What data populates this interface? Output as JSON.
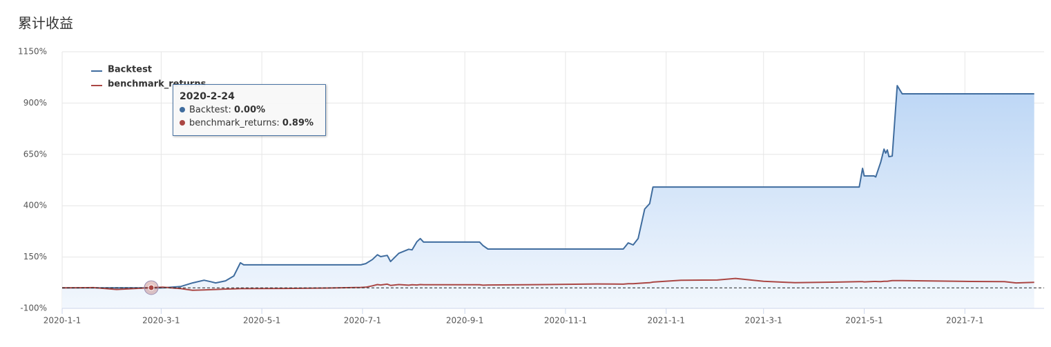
{
  "chart_data": {
    "type": "area-line",
    "title": "累计收益",
    "x": [
      "2020-1-1",
      "2020-1-20",
      "2020-2-3",
      "2020-2-24",
      "2020-3-2",
      "2020-3-13",
      "2020-3-20",
      "2020-3-27",
      "2020-3-31",
      "2020-4-3",
      "2020-4-9",
      "2020-4-14",
      "2020-4-18",
      "2020-4-20",
      "2020-5-15",
      "2020-6-10",
      "2020-6-30",
      "2020-7-3",
      "2020-7-7",
      "2020-7-10",
      "2020-7-12",
      "2020-7-16",
      "2020-7-18",
      "2020-7-23",
      "2020-7-29",
      "2020-7-31",
      "2020-8-3",
      "2020-8-5",
      "2020-8-7",
      "2020-9-10",
      "2020-9-12",
      "2020-9-15",
      "2020-10-20",
      "2020-11-20",
      "2020-12-6",
      "2020-12-9",
      "2020-12-12",
      "2020-12-15",
      "2020-12-19",
      "2020-12-22",
      "2020-12-24",
      "2021-1-10",
      "2021-2-1",
      "2021-2-12",
      "2021-3-1",
      "2021-3-20",
      "2021-4-15",
      "2021-4-28",
      "2021-4-30",
      "2021-5-1",
      "2021-5-7",
      "2021-5-8",
      "2021-5-11",
      "2021-5-13",
      "2021-5-14",
      "2021-5-15",
      "2021-5-16",
      "2021-5-18",
      "2021-5-21",
      "2021-5-24",
      "2021-6-15",
      "2021-7-5",
      "2021-7-25",
      "2021-8-1",
      "2021-8-12"
    ],
    "series": [
      {
        "name": "Backtest",
        "color": "#3f6c9e",
        "fill": true,
        "values": [
          0,
          0,
          0,
          0,
          0,
          7,
          24,
          37,
          30,
          24,
          34,
          58,
          122,
          112,
          112,
          112,
          112,
          118,
          138,
          161,
          152,
          158,
          128,
          168,
          188,
          185,
          225,
          240,
          223,
          223,
          206,
          189,
          189,
          189,
          189,
          219,
          209,
          240,
          384,
          410,
          491,
          491,
          491,
          491,
          491,
          491,
          491,
          491,
          582,
          545,
          545,
          540,
          612,
          676,
          656,
          672,
          639,
          642,
          985,
          945,
          945,
          945,
          945,
          945,
          945
        ]
      },
      {
        "name": "benchmark_returns",
        "color": "#aa4643",
        "fill": false,
        "values": [
          0,
          1,
          -8,
          0.89,
          3,
          -4,
          -12,
          -10,
          -9,
          -8,
          -6,
          -5,
          -4,
          -4,
          -3,
          -1,
          2,
          3,
          10,
          16,
          14,
          18,
          12,
          16,
          13,
          15,
          14,
          16,
          15,
          15,
          13,
          14,
          16,
          19,
          18,
          20,
          20,
          22,
          24,
          25,
          28,
          37,
          38,
          46,
          32,
          25,
          28,
          30,
          30,
          29,
          31,
          31,
          30,
          32,
          32,
          32,
          33,
          35,
          35,
          35,
          33,
          31,
          30,
          24,
          27
        ]
      }
    ],
    "xlim": [
      "2020-1-1",
      "2021-8-18"
    ],
    "xticks": [
      "2020-1-1",
      "2020-3-1",
      "2020-5-1",
      "2020-7-1",
      "2020-9-1",
      "2020-11-1",
      "2021-1-1",
      "2021-3-1",
      "2021-5-1",
      "2021-7-1"
    ],
    "ylim": [
      -100,
      1150
    ],
    "yticks": [
      {
        "value": -100,
        "label": "-100%"
      },
      {
        "value": 150,
        "label": "150%"
      },
      {
        "value": 400,
        "label": "400%"
      },
      {
        "value": 650,
        "label": "650%"
      },
      {
        "value": 900,
        "label": "900%"
      },
      {
        "value": 1150,
        "label": "1150%"
      }
    ],
    "plot_line": 0,
    "grid": true,
    "legend": "top-left",
    "tooltip": {
      "x": "2020-2-24",
      "values": [
        0,
        0.89
      ],
      "value_labels": [
        "0.00%",
        "0.89%"
      ]
    }
  }
}
